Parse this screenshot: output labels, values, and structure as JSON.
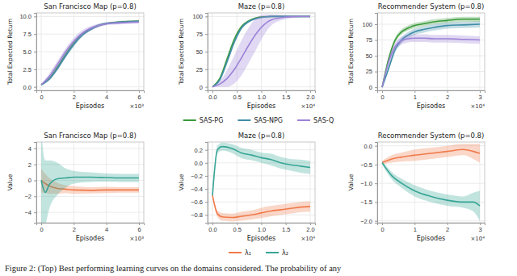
{
  "caption": "Figure 2: (Top) Best performing learning curves on the domains considered. The probability of any",
  "chart_data": [
    {
      "type": "line",
      "title": "San Francisco Map (p=0.8)",
      "x_label": "Episodes",
      "y_label": "Total Expected Return",
      "x_offset_text": "×10³",
      "xlim": [
        -0.3,
        6.3
      ],
      "ylim": [
        -0.5,
        10.5
      ],
      "xticks": [
        0,
        2,
        4,
        6
      ],
      "yticks": [
        {
          "value": 0,
          "label": "0.0"
        },
        {
          "value": 2.5,
          "label": "2.5"
        },
        {
          "value": 5,
          "label": "5.0"
        },
        {
          "value": 7.5,
          "label": "7.5"
        },
        {
          "value": 10,
          "label": "10.0"
        }
      ],
      "grid": true,
      "legend": "bottom",
      "x": [
        0,
        0.5,
        1,
        1.5,
        2,
        2.5,
        3,
        3.5,
        4,
        4.5,
        5,
        5.5,
        6
      ],
      "series": [
        {
          "name": "SAS-PG",
          "color": "#3a9a3a",
          "values": [
            0.3,
            1.2,
            2.8,
            4.6,
            6.2,
            7.4,
            8.2,
            8.7,
            9.0,
            9.15,
            9.25,
            9.3,
            9.35
          ],
          "error": [
            0.1,
            0.2,
            0.25,
            0.3,
            0.3,
            0.25,
            0.2,
            0.2,
            0.15,
            0.15,
            0.15,
            0.15,
            0.15
          ]
        },
        {
          "name": "SAS-NPG",
          "color": "#3f8ea8",
          "values": [
            0.3,
            1.1,
            2.6,
            4.4,
            6.0,
            7.3,
            8.1,
            8.7,
            9.0,
            9.1,
            9.2,
            9.25,
            9.3
          ],
          "error": [
            0.1,
            0.2,
            0.25,
            0.3,
            0.3,
            0.25,
            0.2,
            0.2,
            0.15,
            0.15,
            0.15,
            0.15,
            0.15
          ]
        },
        {
          "name": "SAS-Q",
          "color": "#9c82d8",
          "values": [
            0.3,
            1.5,
            3.2,
            5.0,
            6.5,
            7.6,
            8.3,
            8.7,
            8.95,
            9.05,
            9.1,
            9.15,
            9.2
          ],
          "error": [
            0.1,
            0.4,
            0.5,
            0.5,
            0.45,
            0.4,
            0.3,
            0.25,
            0.2,
            0.2,
            0.2,
            0.2,
            0.2
          ]
        }
      ]
    },
    {
      "type": "line",
      "title": "Maze (p=0.8)",
      "x_label": "Episodes",
      "y_label": "Total Expected Return",
      "x_offset_text": "×10⁴",
      "xlim": [
        -0.1,
        2.1
      ],
      "ylim": [
        -5,
        105
      ],
      "xticks": [
        {
          "value": 0,
          "label": "0.0"
        },
        {
          "value": 0.5,
          "label": "0.5"
        },
        {
          "value": 1,
          "label": "1.0"
        },
        {
          "value": 1.5,
          "label": "1.5"
        },
        {
          "value": 2,
          "label": "2.0"
        }
      ],
      "yticks": [
        0,
        25,
        50,
        75,
        100
      ],
      "grid": true,
      "x": [
        0,
        0.15,
        0.3,
        0.45,
        0.6,
        0.75,
        0.9,
        1.05,
        1.2,
        1.5,
        1.8,
        2.0
      ],
      "series": [
        {
          "name": "SAS-PG",
          "color": "#3a9a3a",
          "values": [
            0,
            12,
            40,
            68,
            86,
            94,
            98,
            99.5,
            100,
            100,
            100,
            100
          ],
          "error": [
            0,
            2,
            3,
            3,
            2,
            1.5,
            1,
            0.5,
            0.3,
            0.2,
            0.2,
            0.2
          ]
        },
        {
          "name": "SAS-NPG",
          "color": "#3f8ea8",
          "values": [
            0,
            10,
            36,
            64,
            84,
            93,
            97,
            99,
            100,
            100,
            100,
            100
          ],
          "error": [
            0,
            2,
            3,
            3,
            2,
            1.5,
            1,
            0.5,
            0.3,
            0.2,
            0.2,
            0.2
          ]
        },
        {
          "name": "SAS-Q",
          "color": "#9c82d8",
          "values": [
            0,
            4,
            12,
            25,
            42,
            60,
            76,
            88,
            95,
            99,
            100,
            100
          ],
          "error": [
            0,
            4,
            12,
            20,
            25,
            25,
            22,
            15,
            8,
            3,
            1,
            0
          ]
        }
      ]
    },
    {
      "type": "line",
      "title": "Recommender System (p=0.8)",
      "x_label": "Episodes",
      "y_label": "Total Expected Return",
      "x_offset_text": "×10⁴",
      "xlim": [
        -0.15,
        3.15
      ],
      "ylim": [
        -5,
        118
      ],
      "xticks": [
        0,
        1,
        2,
        3
      ],
      "yticks": [
        0,
        25,
        50,
        75,
        100
      ],
      "grid": true,
      "x": [
        0,
        0.2,
        0.4,
        0.6,
        0.8,
        1.0,
        1.3,
        1.6,
        2.0,
        2.5,
        3.0
      ],
      "series": [
        {
          "name": "SAS-PG",
          "color": "#3a9a3a",
          "values": [
            0,
            45,
            75,
            88,
            94,
            98,
            101,
            104,
            106,
            108,
            108
          ],
          "error": [
            0,
            4,
            4,
            4,
            4,
            4,
            4,
            4,
            4,
            4,
            4
          ]
        },
        {
          "name": "SAS-NPG",
          "color": "#3f8ea8",
          "values": [
            0,
            30,
            60,
            75,
            83,
            88,
            92,
            95,
            98,
            99,
            100
          ],
          "error": [
            0,
            4,
            5,
            5,
            5,
            5,
            5,
            5,
            5,
            5,
            5
          ]
        },
        {
          "name": "SAS-Q",
          "color": "#9c82d8",
          "values": [
            0,
            40,
            65,
            74,
            77,
            78,
            78,
            77,
            77,
            76,
            75
          ],
          "error": [
            0,
            5,
            6,
            6,
            6,
            6,
            6,
            6,
            6,
            6,
            6
          ]
        }
      ]
    },
    {
      "type": "line",
      "title": "San Francisco Map (p=0.8)",
      "x_label": "Episodes",
      "y_label": "Value",
      "x_offset_text": "×10³",
      "xlim": [
        -0.3,
        6.3
      ],
      "ylim": [
        -5.3,
        4.8
      ],
      "xticks": [
        0,
        2,
        4,
        6
      ],
      "yticks": [
        {
          "value": -4,
          "label": "−4"
        },
        {
          "value": -2,
          "label": "−2"
        },
        0,
        2,
        4
      ],
      "grid": true,
      "legend": "bottom",
      "x": [
        0,
        0.25,
        0.5,
        1,
        1.5,
        2,
        3,
        4,
        5,
        6
      ],
      "series": [
        {
          "name": "λ₁",
          "color": "#f07a4a",
          "values": [
            0,
            -0.4,
            -0.7,
            -1.0,
            -1.1,
            -1.2,
            -1.25,
            -1.2,
            -1.2,
            -1.2
          ],
          "error": [
            1.5,
            1.2,
            1,
            0.7,
            0.5,
            0.5,
            0.4,
            0.4,
            0.35,
            0.35
          ]
        },
        {
          "name": "λ₂",
          "color": "#36a596",
          "values": [
            0,
            -1.5,
            -0.5,
            0.2,
            0.3,
            0.4,
            0.4,
            0.35,
            0.3,
            0.3
          ],
          "error": [
            6,
            4,
            3,
            2,
            1.2,
            0.8,
            0.6,
            0.5,
            0.5,
            0.5
          ]
        }
      ]
    },
    {
      "type": "line",
      "title": "Maze (p=0.8)",
      "x_label": "Episodes",
      "y_label": "Value",
      "x_offset_text": "×10⁴",
      "xlim": [
        -0.1,
        2.1
      ],
      "ylim": [
        -0.92,
        0.32
      ],
      "xticks": [
        {
          "value": 0,
          "label": "0.0"
        },
        {
          "value": 0.5,
          "label": "0.5"
        },
        {
          "value": 1,
          "label": "1.0"
        },
        {
          "value": 1.5,
          "label": "1.5"
        },
        {
          "value": 2,
          "label": "2.0"
        }
      ],
      "yticks": [
        {
          "value": -0.8,
          "label": "−0.8"
        },
        {
          "value": -0.6,
          "label": "−0.6"
        },
        {
          "value": -0.4,
          "label": "−0.4"
        },
        {
          "value": -0.2,
          "label": "−0.2"
        },
        {
          "value": 0,
          "label": "0.0"
        },
        {
          "value": 0.2,
          "label": "0.2"
        }
      ],
      "grid": true,
      "x": [
        0,
        0.1,
        0.2,
        0.4,
        0.6,
        0.8,
        1.0,
        1.2,
        1.4,
        1.6,
        1.8,
        2.0
      ],
      "series": [
        {
          "name": "λ₁",
          "color": "#f07a4a",
          "values": [
            -0.5,
            -0.78,
            -0.83,
            -0.84,
            -0.82,
            -0.8,
            -0.77,
            -0.74,
            -0.72,
            -0.7,
            -0.68,
            -0.67
          ],
          "error": [
            0.02,
            0.05,
            0.06,
            0.06,
            0.07,
            0.07,
            0.08,
            0.08,
            0.08,
            0.08,
            0.08,
            0.08
          ]
        },
        {
          "name": "λ₂",
          "color": "#36a596",
          "values": [
            -0.5,
            0.2,
            0.25,
            0.22,
            0.15,
            0.12,
            0.08,
            0.05,
            0.0,
            -0.03,
            -0.05,
            -0.07
          ],
          "error": [
            0.02,
            0.06,
            0.06,
            0.07,
            0.08,
            0.08,
            0.08,
            0.09,
            0.09,
            0.09,
            0.1,
            0.1
          ]
        }
      ]
    },
    {
      "type": "line",
      "title": "Recommender System (p=0.8)",
      "x_label": "Episodes",
      "y_label": "Value",
      "x_offset_text": "×10⁴",
      "xlim": [
        -0.15,
        3.15
      ],
      "ylim": [
        -2.05,
        0.1
      ],
      "xticks": [
        0,
        1,
        2,
        3
      ],
      "yticks": [
        {
          "value": -2,
          "label": "−2.0"
        },
        {
          "value": -1.5,
          "label": "−1.5"
        },
        {
          "value": -1,
          "label": "−1.0"
        },
        {
          "value": -0.5,
          "label": "−0.5"
        },
        {
          "value": 0,
          "label": "0.0"
        }
      ],
      "grid": true,
      "x": [
        0,
        0.3,
        0.6,
        1,
        1.5,
        2,
        2.5,
        2.8,
        3
      ],
      "series": [
        {
          "name": "λ₁",
          "color": "#f07a4a",
          "values": [
            -0.45,
            -0.35,
            -0.3,
            -0.25,
            -0.2,
            -0.15,
            -0.1,
            -0.15,
            -0.2
          ],
          "error": [
            0.05,
            0.1,
            0.12,
            0.15,
            0.15,
            0.15,
            0.15,
            0.2,
            0.25
          ]
        },
        {
          "name": "λ₂",
          "color": "#36a596",
          "values": [
            -0.45,
            -0.8,
            -1.0,
            -1.2,
            -1.35,
            -1.45,
            -1.5,
            -1.5,
            -1.6
          ],
          "error": [
            0.05,
            0.1,
            0.12,
            0.15,
            0.15,
            0.15,
            0.15,
            0.25,
            0.4
          ]
        }
      ]
    }
  ]
}
